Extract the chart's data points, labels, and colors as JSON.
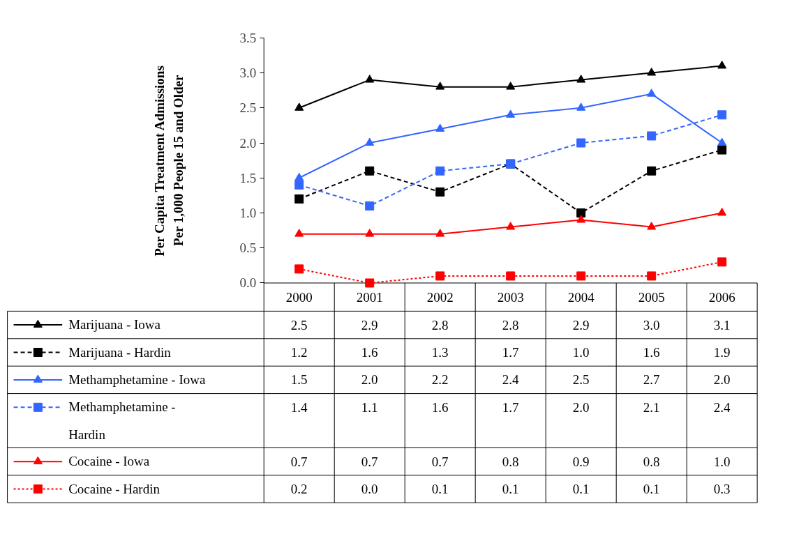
{
  "chart_data": {
    "type": "line",
    "ylabel": "Per Capita Treatment Admissions Per 1,000 People 15 and Older",
    "categories": [
      "2000",
      "2001",
      "2002",
      "2003",
      "2004",
      "2005",
      "2006"
    ],
    "ylim": [
      0,
      3.5
    ],
    "yticks": [
      {
        "value": 0,
        "label": "0.0"
      },
      {
        "value": 0.5,
        "label": "0.5"
      },
      {
        "value": 1,
        "label": "1.0"
      },
      {
        "value": 1.5,
        "label": "1.5"
      },
      {
        "value": 2,
        "label": "2.0"
      },
      {
        "value": 2.5,
        "label": "2.5"
      },
      {
        "value": 3,
        "label": "3.0"
      },
      {
        "value": 3.5,
        "label": "3.5"
      }
    ],
    "grid": false,
    "legend": "bottom",
    "series": [
      {
        "name": "Marijuana - Iowa",
        "color": "#000000",
        "marker": "triangle",
        "line_style": "solid",
        "values": [
          2.5,
          2.9,
          2.8,
          2.8,
          2.9,
          3.0,
          3.1
        ],
        "value_labels": [
          "2.5",
          "2.9",
          "2.8",
          "2.8",
          "2.9",
          "3.0",
          "3.1"
        ]
      },
      {
        "name": "Marijuana - Hardin",
        "color": "#000000",
        "marker": "square",
        "line_style": "dashed",
        "values": [
          1.2,
          1.6,
          1.3,
          1.7,
          1.0,
          1.6,
          1.9
        ],
        "value_labels": [
          "1.2",
          "1.6",
          "1.3",
          "1.7",
          "1.0",
          "1.6",
          "1.9"
        ]
      },
      {
        "name": "Methamphetamine - Iowa",
        "color": "#3366ff",
        "marker": "triangle",
        "line_style": "solid",
        "values": [
          1.5,
          2.0,
          2.2,
          2.4,
          2.5,
          2.7,
          2.0
        ],
        "value_labels": [
          "1.5",
          "2.0",
          "2.2",
          "2.4",
          "2.5",
          "2.7",
          "2.0"
        ]
      },
      {
        "name": "Methamphetamine - Hardin",
        "color": "#3366ff",
        "marker": "square",
        "line_style": "dashed",
        "values": [
          1.4,
          1.1,
          1.6,
          1.7,
          2.0,
          2.1,
          2.4
        ],
        "value_labels": [
          "1.4",
          "1.1",
          "1.6",
          "1.7",
          "2.0",
          "2.1",
          "2.4"
        ]
      },
      {
        "name": "Cocaine - Iowa",
        "color": "#ff0000",
        "marker": "triangle",
        "line_style": "solid",
        "values": [
          0.7,
          0.7,
          0.7,
          0.8,
          0.9,
          0.8,
          1.0
        ],
        "value_labels": [
          "0.7",
          "0.7",
          "0.7",
          "0.8",
          "0.9",
          "0.8",
          "1.0"
        ]
      },
      {
        "name": "Cocaine - Hardin",
        "color": "#ff0000",
        "marker": "square",
        "line_style": "dotted",
        "values": [
          0.2,
          0.0,
          0.1,
          0.1,
          0.1,
          0.1,
          0.3
        ],
        "value_labels": [
          "0.2",
          "0.0",
          "0.1",
          "0.1",
          "0.1",
          "0.1",
          "0.3"
        ]
      }
    ]
  }
}
